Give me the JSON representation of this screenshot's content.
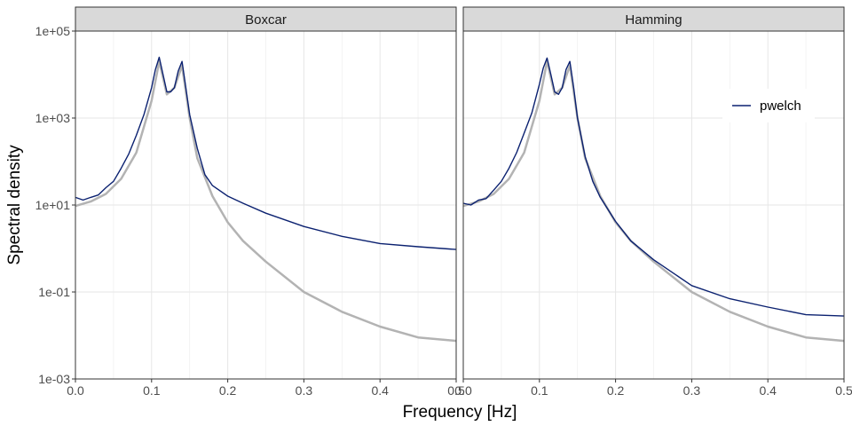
{
  "chart_data": {
    "type": "line",
    "xlabel": "Frequency [Hz]",
    "ylabel": "Spectral density",
    "xlim": [
      0,
      0.5
    ],
    "ylim": [
      0.001,
      100000
    ],
    "yscale": "log10",
    "grid": true,
    "x_ticks": [
      0.0,
      0.1,
      0.2,
      0.3,
      0.4,
      0.5
    ],
    "x_tick_labels": [
      "0.0",
      "0.1",
      "0.2",
      "0.3",
      "0.4",
      "0.5"
    ],
    "y_ticks": [
      0.001,
      0.1,
      10,
      1000,
      100000
    ],
    "y_tick_labels": [
      "1e-03",
      "1e-01",
      "1e+01",
      "1e+03",
      "1e+05"
    ],
    "legend": {
      "position": "top-right of right panel",
      "entries": [
        "pwelch"
      ]
    },
    "colors": {
      "pwelch": "#0b2170",
      "true_spectrum": "#b3b3b3",
      "strip": "#d9d9d9"
    },
    "panels": [
      {
        "strip": "Boxcar",
        "series": [
          {
            "name": "pwelch",
            "x": [
              0.0,
              0.01,
              0.02,
              0.03,
              0.04,
              0.05,
              0.06,
              0.07,
              0.08,
              0.09,
              0.1,
              0.105,
              0.11,
              0.115,
              0.12,
              0.125,
              0.13,
              0.135,
              0.14,
              0.145,
              0.15,
              0.16,
              0.17,
              0.18,
              0.2,
              0.22,
              0.25,
              0.3,
              0.35,
              0.4,
              0.45,
              0.5
            ],
            "y": [
              15,
              13,
              15,
              17,
              25,
              35,
              70,
              150,
              400,
              1200,
              5000,
              13000,
              25000,
              10000,
              4000,
              4000,
              5000,
              12000,
              20000,
              5000,
              1200,
              200,
              50,
              28,
              16,
              11,
              6.5,
              3.2,
              1.9,
              1.3,
              1.1,
              0.95
            ]
          },
          {
            "x": [
              0.0,
              0.02,
              0.04,
              0.06,
              0.08,
              0.1,
              0.11,
              0.12,
              0.13,
              0.14,
              0.15,
              0.16,
              0.18,
              0.2,
              0.22,
              0.25,
              0.3,
              0.35,
              0.4,
              0.45,
              0.5
            ],
            "y": [
              9.5,
              12,
              18,
              40,
              160,
              2500,
              20000,
              3500,
              5000,
              16000,
              1000,
              120,
              16,
              4,
              1.5,
              0.5,
              0.1,
              0.035,
              0.016,
              0.009,
              0.0075
            ]
          }
        ]
      },
      {
        "strip": "Hamming",
        "series": [
          {
            "name": "pwelch",
            "x": [
              0.0,
              0.01,
              0.02,
              0.03,
              0.04,
              0.05,
              0.06,
              0.07,
              0.08,
              0.09,
              0.1,
              0.105,
              0.11,
              0.115,
              0.12,
              0.125,
              0.13,
              0.135,
              0.14,
              0.145,
              0.15,
              0.16,
              0.17,
              0.18,
              0.2,
              0.22,
              0.25,
              0.3,
              0.35,
              0.4,
              0.45,
              0.5
            ],
            "y": [
              11,
              10,
              13,
              14,
              22,
              35,
              70,
              160,
              450,
              1300,
              6000,
              14000,
              24000,
              10000,
              4000,
              3500,
              5000,
              13000,
              20000,
              5000,
              1000,
              130,
              35,
              15,
              4.2,
              1.5,
              0.55,
              0.14,
              0.07,
              0.045,
              0.03,
              0.028
            ]
          },
          {
            "x": [
              0.0,
              0.02,
              0.04,
              0.06,
              0.08,
              0.1,
              0.11,
              0.12,
              0.13,
              0.14,
              0.15,
              0.16,
              0.18,
              0.2,
              0.22,
              0.25,
              0.3,
              0.35,
              0.4,
              0.45,
              0.5
            ],
            "y": [
              9.5,
              12,
              18,
              40,
              160,
              2500,
              20000,
              3500,
              5000,
              16000,
              1000,
              120,
              16,
              4,
              1.5,
              0.5,
              0.1,
              0.035,
              0.016,
              0.009,
              0.0075
            ]
          }
        ]
      }
    ]
  }
}
